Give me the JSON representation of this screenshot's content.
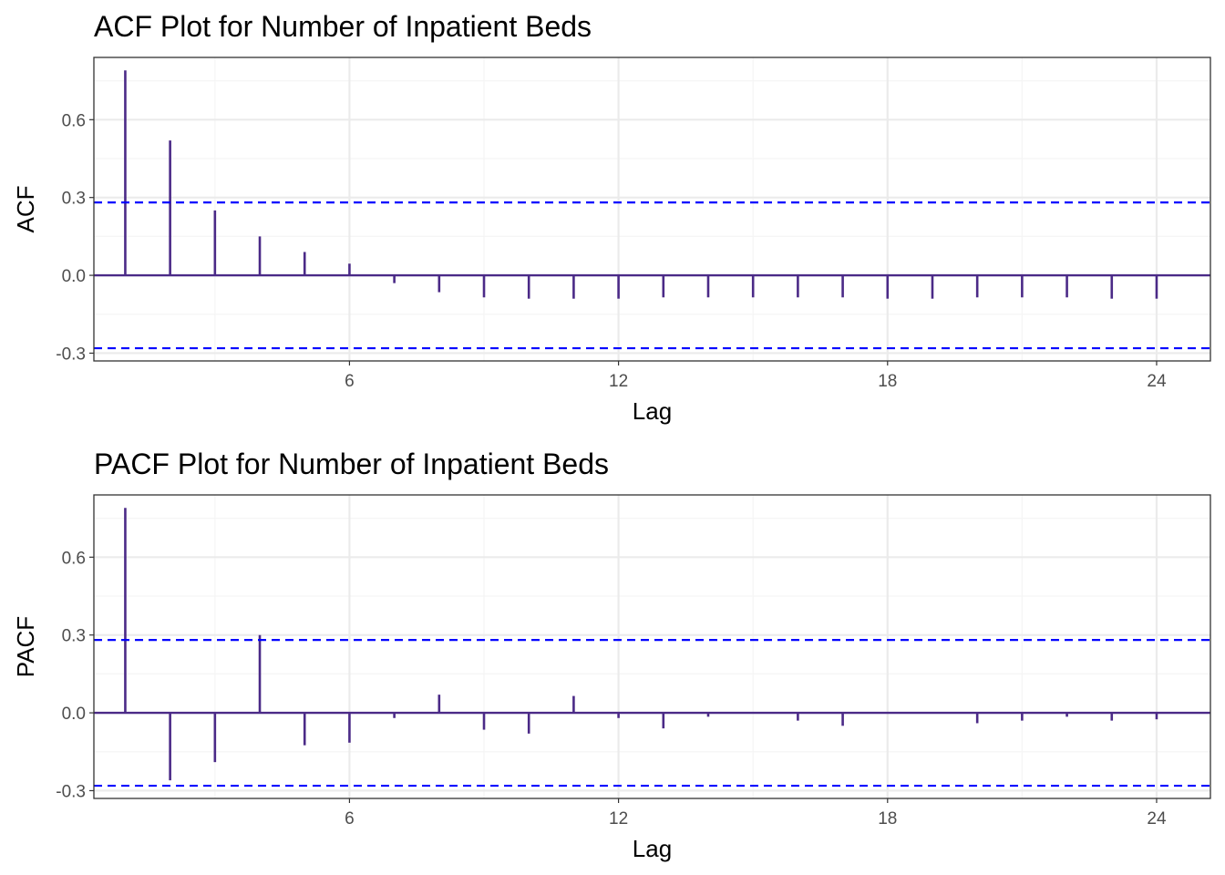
{
  "colors": {
    "bar": "#4b2a87",
    "ci_line": "#0000ff",
    "grid_major": "#ebebeb",
    "grid_minor": "#f5f5f5",
    "panel_border": "#333333",
    "tick_label": "#4d4d4d"
  },
  "chart_data": [
    {
      "type": "bar",
      "title": "ACF Plot for Number of Inpatient Beds",
      "xlabel": "Lag",
      "ylabel": "ACF",
      "x_ticks": [
        6,
        12,
        18,
        24
      ],
      "y_ticks": [
        -0.3,
        0.0,
        0.3,
        0.6
      ],
      "y_tick_labels": [
        "-0.3",
        "0.0",
        "0.3",
        "0.6"
      ],
      "xlim": [
        0.3,
        25.2
      ],
      "ylim": [
        -0.33,
        0.84
      ],
      "grid": true,
      "confidence_bound": 0.281,
      "lags": [
        1,
        2,
        3,
        4,
        5,
        6,
        7,
        8,
        9,
        10,
        11,
        12,
        13,
        14,
        15,
        16,
        17,
        18,
        19,
        20,
        21,
        22,
        23,
        24
      ],
      "values": [
        0.79,
        0.52,
        0.25,
        0.15,
        0.09,
        0.045,
        -0.03,
        -0.065,
        -0.085,
        -0.09,
        -0.09,
        -0.09,
        -0.085,
        -0.085,
        -0.085,
        -0.085,
        -0.085,
        -0.09,
        -0.09,
        -0.085,
        -0.085,
        -0.085,
        -0.09,
        -0.09
      ]
    },
    {
      "type": "bar",
      "title": "PACF Plot for Number of Inpatient Beds",
      "xlabel": "Lag",
      "ylabel": "PACF",
      "x_ticks": [
        6,
        12,
        18,
        24
      ],
      "y_ticks": [
        -0.3,
        0.0,
        0.3,
        0.6
      ],
      "y_tick_labels": [
        "-0.3",
        "0.0",
        "0.3",
        "0.6"
      ],
      "xlim": [
        0.3,
        25.2
      ],
      "ylim": [
        -0.33,
        0.84
      ],
      "grid": true,
      "confidence_bound": 0.281,
      "lags": [
        1,
        2,
        3,
        4,
        5,
        6,
        7,
        8,
        9,
        10,
        11,
        12,
        13,
        14,
        15,
        16,
        17,
        18,
        19,
        20,
        21,
        22,
        23,
        24
      ],
      "values": [
        0.79,
        -0.26,
        -0.19,
        0.3,
        -0.125,
        -0.115,
        -0.02,
        0.07,
        -0.065,
        -0.08,
        0.065,
        -0.02,
        -0.06,
        -0.015,
        0.0,
        -0.03,
        -0.05,
        0.0,
        0.0,
        -0.04,
        -0.03,
        -0.015,
        -0.03,
        -0.025
      ]
    }
  ]
}
